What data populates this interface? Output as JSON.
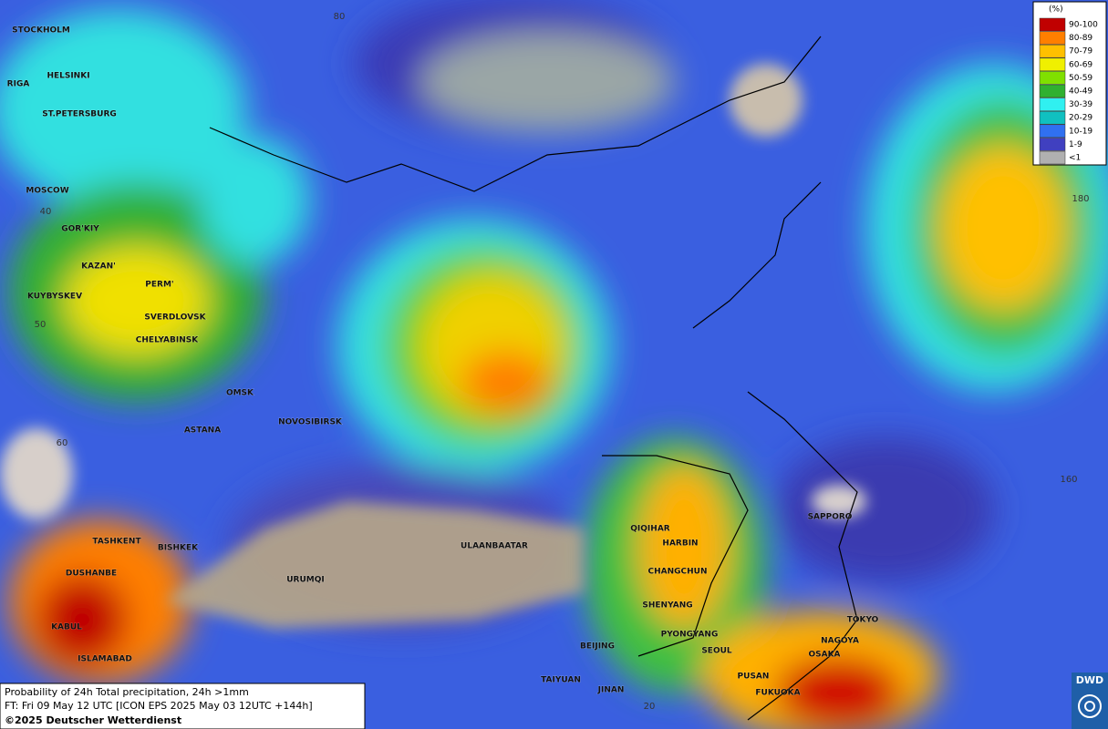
{
  "legend": {
    "title": "(%)",
    "items": [
      {
        "label": "90-100",
        "color": "#c00000"
      },
      {
        "label": "80-89",
        "color": "#ff7f00"
      },
      {
        "label": "70-79",
        "color": "#ffc000"
      },
      {
        "label": "60-69",
        "color": "#f0f000"
      },
      {
        "label": "50-59",
        "color": "#80e000"
      },
      {
        "label": "40-49",
        "color": "#30b030"
      },
      {
        "label": "30-39",
        "color": "#30f0f0"
      },
      {
        "label": "20-29",
        "color": "#10c0c0"
      },
      {
        "label": "10-19",
        "color": "#3070f0"
      },
      {
        "label": "1-9",
        "color": "#4040c0"
      },
      {
        "label": "<1",
        "color": "#b0b0b0"
      }
    ]
  },
  "cities": [
    "STOCKHOLM",
    "HELSINKI",
    "RIGA",
    "ST.PETERSBURG",
    "MOSCOW",
    "GOR'KIY",
    "KAZAN'",
    "PERM'",
    "KUYBYSKEV",
    "SVERDLOVSK",
    "CHELYABINSK",
    "OMSK",
    "NOVOSIBIRSK",
    "ASTANA",
    "TASHKENT",
    "BISHKEK",
    "DUSHANBE",
    "URUMQI",
    "ULAANBAATAR",
    "QIQIHAR",
    "HARBIN",
    "CHANGCHUN",
    "SHENYANG",
    "PYONGYANG",
    "SEOUL",
    "BEIJING",
    "TAIYUAN",
    "JINAN",
    "PUSAN",
    "FUKUOKA",
    "OSAKA",
    "NAGOYA",
    "TOKYO",
    "SAPPORO",
    "KABUL",
    "ISLAMABAD"
  ],
  "grid_labels": [
    "80",
    "40",
    "50",
    "60",
    "180",
    "160",
    "20"
  ],
  "footer": {
    "line1": "Probability of 24h Total precipitation, 24h >1mm",
    "line2": "FT: Fri 09 May 12 UTC [ICON EPS 2025 May 03 12UTC +144h]",
    "line3": "©2025 Deutscher Wetterdienst"
  },
  "logo": "DWD"
}
